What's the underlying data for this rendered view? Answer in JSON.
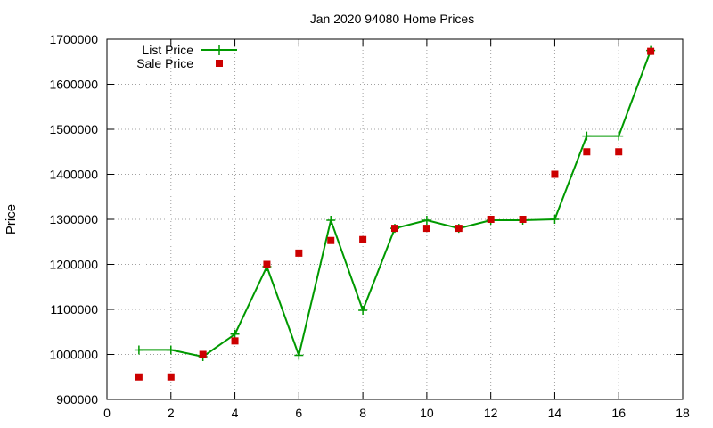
{
  "chart_data": {
    "type": "line",
    "title": "Jan 2020 94080 Home Prices",
    "xlabel": "",
    "ylabel": "Price",
    "xlim": [
      0,
      18
    ],
    "ylim": [
      900000,
      1700000
    ],
    "x_ticks": [
      0,
      2,
      4,
      6,
      8,
      10,
      12,
      14,
      16,
      18
    ],
    "y_ticks": [
      900000,
      1000000,
      1100000,
      1200000,
      1300000,
      1400000,
      1500000,
      1600000,
      1700000
    ],
    "grid": true,
    "legend_position": "top-left",
    "series": [
      {
        "name": "List Price",
        "style": "line-with-plus-markers",
        "color": "#009900",
        "x": [
          1,
          2,
          3,
          4,
          5,
          6,
          7,
          8,
          9,
          10,
          11,
          12,
          13,
          14,
          15,
          16,
          17
        ],
        "values": [
          1010000,
          1010000,
          995000,
          1045000,
          1195000,
          998000,
          1298000,
          1098000,
          1280000,
          1298000,
          1280000,
          1298000,
          1298000,
          1300000,
          1485000,
          1485000,
          1675000
        ]
      },
      {
        "name": "Sale Price",
        "style": "square-markers",
        "color": "#cc0000",
        "x": [
          1,
          2,
          3,
          4,
          5,
          6,
          7,
          8,
          9,
          10,
          11,
          12,
          13,
          14,
          15,
          16,
          17
        ],
        "values": [
          950000,
          950000,
          1000000,
          1030000,
          1200000,
          1225000,
          1253000,
          1255000,
          1280000,
          1280000,
          1280000,
          1300000,
          1300000,
          1400000,
          1450000,
          1450000,
          1673000
        ]
      }
    ]
  }
}
